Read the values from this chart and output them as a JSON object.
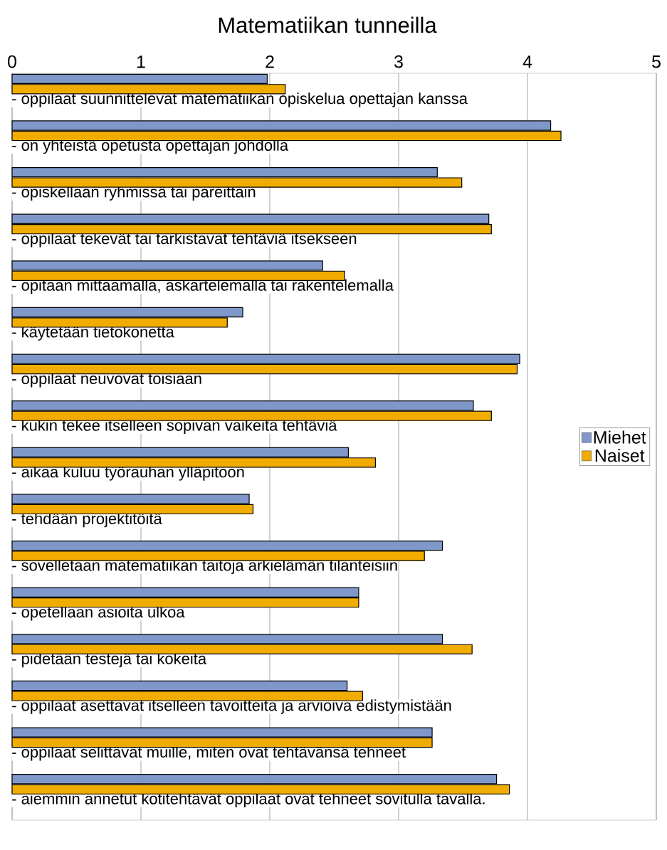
{
  "chart_data": {
    "type": "bar",
    "orientation": "horizontal",
    "title": "Matematiikan tunneilla",
    "categories": [
      "- oppilaat suunnittelevat matematiikan opiskelua opettajan kanssa",
      "- on yhteistä opetusta opettajan johdolla",
      "- opiskellaan ryhmissä tai pareittain",
      "- oppilaat tekevät tai tarkistavat tehtäviä itsekseen",
      "- opitaan mittaamalla, askartelemalla tai rakentelemalla",
      "- käytetään tietokonetta",
      "- oppilaat neuvovat toisiaan",
      "- kukin tekee itselleen sopivan vaikeita tehtäviä",
      "- aikaa kuluu työrauhan ylläpitoon",
      "- tehdään projektitöitä",
      "- sovelletaan matematiikan taitoja arkielämän tilanteisiin",
      "- opetellaan asioita ulkoa",
      "- pidetään testejä tai kokeita",
      "- oppilaat asettavat itselleen tavoitteita ja arvioiva edistymistään",
      "- oppilaat selittävät muille, miten ovat tehtävänsä tehneet",
      "- aiemmin annetut kotitehtävät oppilaat ovat tehneet sovitulla tavalla."
    ],
    "series": [
      {
        "name": "Miehet",
        "color": "#7f98c9",
        "values": [
          1.98,
          4.18,
          3.3,
          3.7,
          2.41,
          1.79,
          3.94,
          3.58,
          2.61,
          1.84,
          3.34,
          2.69,
          3.34,
          2.6,
          3.26,
          3.76
        ]
      },
      {
        "name": "Naiset",
        "color": "#f0ac00",
        "values": [
          2.12,
          4.26,
          3.49,
          3.72,
          2.58,
          1.67,
          3.92,
          3.72,
          2.82,
          1.87,
          3.2,
          2.69,
          3.57,
          2.72,
          3.26,
          3.86
        ]
      }
    ],
    "xlim": [
      0,
      5
    ],
    "xticks": [
      0,
      1,
      2,
      3,
      4,
      5
    ],
    "grid": "x",
    "legend": "right"
  }
}
